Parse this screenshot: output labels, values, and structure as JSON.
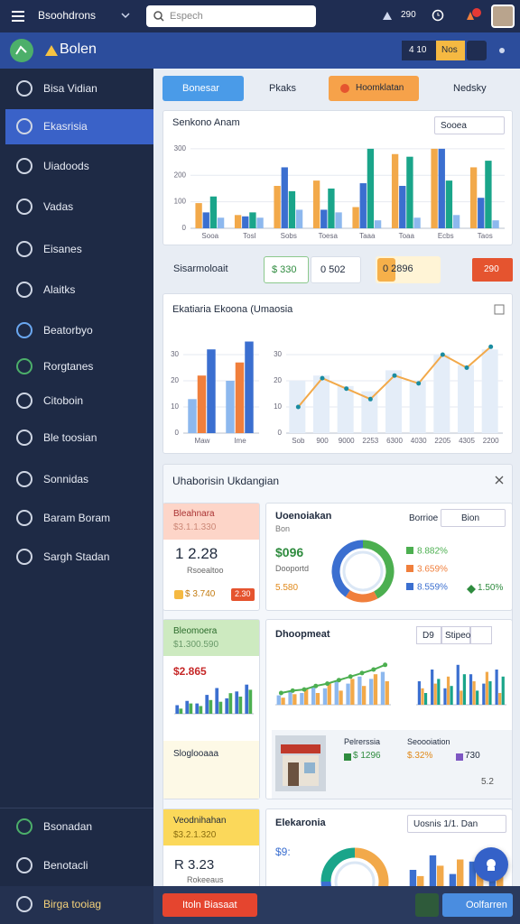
{
  "topbar": {
    "app": "Bsoohdrons",
    "search": "Espech",
    "count": "290"
  },
  "header": {
    "brand": "Bolen",
    "buttons": [
      "4 10",
      "Nos"
    ]
  },
  "sidebar": {
    "items": [
      "Bisa Vidian",
      "Ekasrisia",
      "Uiadoods",
      "Vadas",
      "Eisanes",
      "Alaitks",
      "Beatorbyo",
      "Rorgtanes",
      "Citoboin",
      "Ble toosian",
      "Sonnidas",
      "Baram Boram",
      "Sargh Stadan"
    ],
    "bottom": [
      "Bsonadan",
      "Benotacli",
      "Birga tooiag"
    ]
  },
  "tabs": [
    "Bonesar",
    "Pkaks",
    "Hoomklatan",
    "Nedsky"
  ],
  "chart1": {
    "title": "Senkono Anam",
    "dropdown": "Sooea",
    "categories": [
      "Sooa",
      "Tosl",
      "Sobs",
      "Toesa",
      "Taaa",
      "Toaa",
      "Ecbs",
      "Taos"
    ],
    "ylim": [
      0,
      320
    ],
    "yticks": [
      0,
      100,
      200,
      300
    ],
    "series": [
      {
        "color": "#f2a94a",
        "values": [
          95,
          50,
          160,
          180,
          80,
          280,
          300,
          230
        ]
      },
      {
        "color": "#3b6fd0",
        "values": [
          60,
          45,
          230,
          70,
          170,
          160,
          300,
          115
        ]
      },
      {
        "color": "#1aa58a",
        "values": [
          120,
          60,
          140,
          150,
          300,
          270,
          180,
          255
        ]
      },
      {
        "color": "#8db8ee",
        "values": [
          40,
          40,
          70,
          60,
          30,
          40,
          50,
          30
        ]
      }
    ]
  },
  "stats": {
    "label": "Sisarmoloait",
    "items": [
      "$ 330",
      "0 502",
      "0 2896"
    ],
    "badge": "290"
  },
  "chart2": {
    "title": "Ekatiaria Ekoona (Umaosia",
    "bars": {
      "categories": [
        "Maw",
        "Ime"
      ],
      "ylim": [
        0,
        40
      ],
      "yticks": [
        0,
        10,
        20,
        30
      ],
      "series": [
        {
          "color": "#8db8ee",
          "values": [
            13,
            20
          ]
        },
        {
          "color": "#f07f3c",
          "values": [
            22,
            27
          ]
        },
        {
          "color": "#3b6fd0",
          "values": [
            32,
            35
          ]
        }
      ]
    },
    "line": {
      "categories": [
        "Sob",
        "900",
        "9000",
        "2253",
        "6300",
        "4030",
        "2205",
        "4305",
        "2200"
      ],
      "ylim": [
        0,
        40
      ],
      "yticks": [
        0,
        10,
        20,
        30
      ],
      "series": [
        {
          "type": "bar",
          "color": "#e4edf8",
          "values": [
            20,
            22,
            18,
            16,
            24,
            20,
            30,
            26,
            32
          ]
        },
        {
          "type": "line",
          "color": "#f2a94a",
          "values": [
            10,
            21,
            17,
            13,
            22,
            19,
            30,
            25,
            33
          ]
        }
      ]
    }
  },
  "section": {
    "title": "Uhaborisin Ukdangian",
    "cardA": {
      "title": "Bleahnara",
      "sub": "$3.1.1.330",
      "big": "1 2.28",
      "note": "Rsoealtoo",
      "amount": "$ 3.740",
      "badge": "2.30"
    },
    "cardB": {
      "title": "Uoenoiakan",
      "sub": "Bon",
      "select": "Borrioe",
      "button": "Bion",
      "big": "$096",
      "note": "Dooportd",
      "amount": "5.580",
      "donut": {
        "values": [
          8.882,
          3.659,
          8.559
        ],
        "value_labels": [
          "8.882%",
          "3.659%",
          "8.559%"
        ],
        "colors": [
          "#4caf50",
          "#f07f3c",
          "#3b6fd0"
        ]
      },
      "extra": "1.50%"
    },
    "cardC": {
      "title": "Bleomoera",
      "sub": "$1.300.590",
      "big": "$2.865",
      "foot": "Sloglooaaa",
      "bars": {
        "ylim": [
          0,
          40
        ],
        "series": [
          {
            "color": "#3b6fd0",
            "values": [
              10,
              15,
              12,
              22,
              30,
              18,
              26,
              34
            ]
          },
          {
            "color": "#4caf50",
            "values": [
              6,
              12,
              9,
              16,
              14,
              24,
              20,
              28
            ]
          }
        ]
      }
    },
    "cardD": {
      "title": "Dhoopmeat",
      "buttons": [
        "D9",
        "Stipeo"
      ],
      "combo": {
        "ylim": [
          0,
          40
        ],
        "series": [
          {
            "type": "bar",
            "color": "#8db8ee",
            "values": [
              8,
              12,
              10,
              16,
              14,
              20,
              18,
              24,
              22,
              28
            ]
          },
          {
            "type": "bar",
            "color": "#f2a94a",
            "values": [
              6,
              9,
              14,
              10,
              18,
              12,
              22,
              16,
              26,
              20
            ]
          },
          {
            "type": "line",
            "color": "#4caf50",
            "values": [
              10,
              12,
              13,
              16,
              18,
              21,
              24,
              27,
              30,
              34
            ]
          }
        ]
      },
      "bars": {
        "ylim": [
          0,
          40
        ],
        "series": [
          {
            "color": "#3b6fd0",
            "values": [
              20,
              30,
              14,
              34,
              26,
              18,
              30
            ]
          },
          {
            "color": "#f2a94a",
            "values": [
              14,
              18,
              24,
              12,
              20,
              28,
              10
            ]
          },
          {
            "color": "#1aa58a",
            "values": [
              10,
              22,
              16,
              26,
              12,
              20,
              24
            ]
          }
        ]
      },
      "product": {
        "name": "Pelrerssia",
        "price": "$ 1296",
        "label": "Seoooiation",
        "rate": "$.32%",
        "count": "730",
        "score": "5.2"
      }
    },
    "cardE": {
      "title": "Veodnihahan",
      "sub": "$3.2.1.320",
      "big": "R 3.23",
      "note": "Rokeeaus"
    },
    "cardF": {
      "title": "Elekaronia",
      "select": "Uosnis 1/1. Dan",
      "big": "$9:",
      "donut": {
        "values": [
          45,
          30,
          25
        ],
        "colors": [
          "#f2a94a",
          "#3b6fd0",
          "#1aa58a"
        ]
      },
      "bars": {
        "ylim": [
          0,
          40
        ],
        "series": [
          {
            "color": "#3b6fd0",
            "values": [
              20,
              34,
              16,
              28,
              22
            ]
          },
          {
            "color": "#f2a94a",
            "values": [
              14,
              24,
              30,
              18,
              26
            ]
          }
        ]
      }
    }
  },
  "footer": {
    "left": "Itoln Biasaat",
    "right": "Oolfarren"
  }
}
